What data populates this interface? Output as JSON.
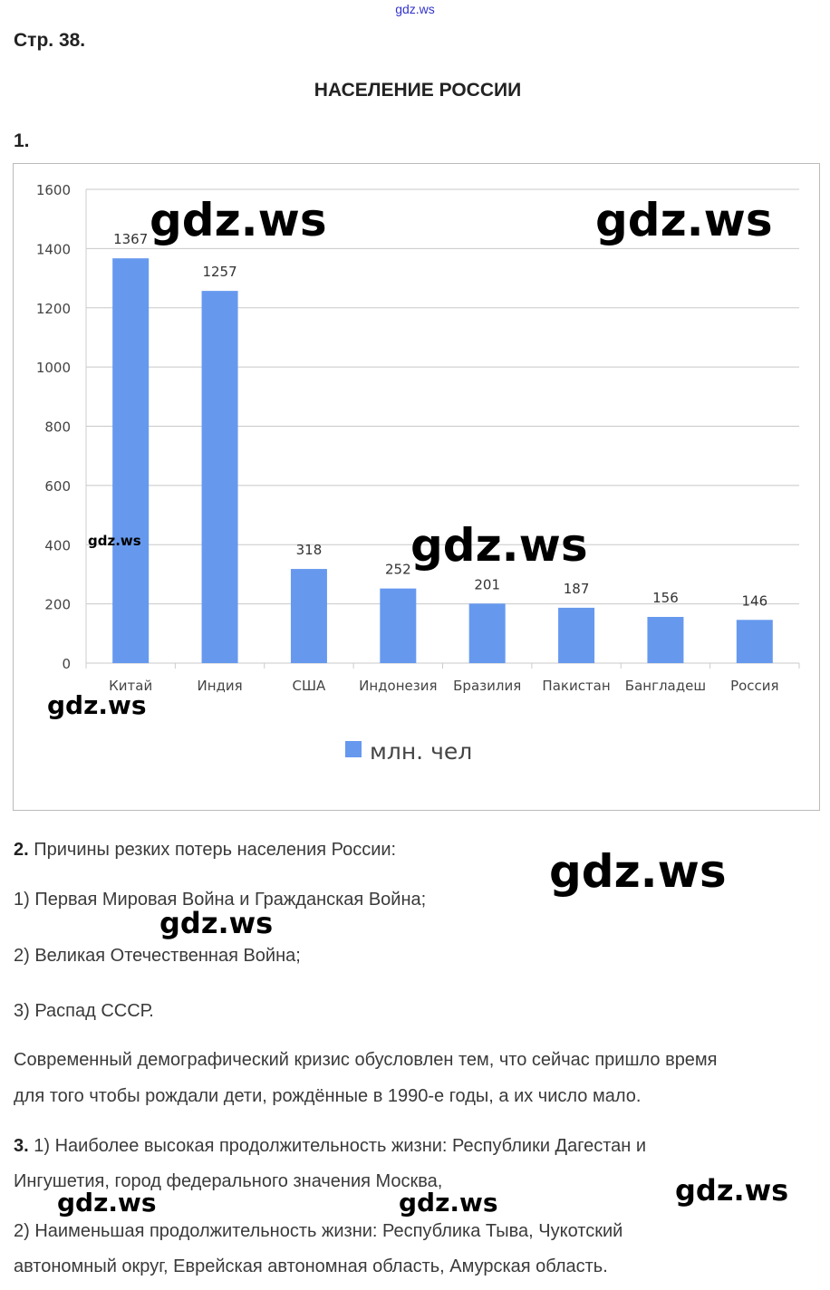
{
  "watermark": "gdz.ws",
  "header": {
    "page": "Стр. 38.",
    "title": "НАСЕЛЕНИЕ РОССИИ",
    "task1": "1."
  },
  "chart_data": {
    "type": "bar",
    "categories": [
      "Китай",
      "Индия",
      "США",
      "Индонезия",
      "Бразилия",
      "Пакистан",
      "Бангладеш",
      "Россия"
    ],
    "values": [
      1367,
      1257,
      318,
      252,
      201,
      187,
      156,
      146
    ],
    "series_name": "млн. чел",
    "title": "",
    "xlabel": "",
    "ylabel": "",
    "ylim": [
      0,
      1600
    ],
    "yticks": [
      "0",
      "200",
      "400",
      "600",
      "800",
      "1000",
      "1200",
      "1400",
      "1600"
    ],
    "grid": true,
    "legend": "bottom",
    "color": "#6699ee"
  },
  "task2": {
    "num": "2.",
    "heading": " Причины резких потерь населения России:",
    "items": [
      "1) Первая Мировая Война и Гражданская Война;",
      "2) Великая Отечественная Война;",
      "3) Распад СССР."
    ],
    "para_lines": [
      "Современный демографический кризис обусловлен тем, что сейчас пришло время",
      "для того чтобы рождали дети, рождённые в 1990-е годы, а их число мало."
    ]
  },
  "task3": {
    "num": "3.",
    "lines": [
      " 1) Наиболее высокая продолжительность жизни: Республики Дагестан и",
      "Ингушетия, город федерального значения Москва,",
      "2) Наименьшая продолжительность жизни: Республика Тыва, Чукотский",
      "автономный округ, Еврейская автономная область, Амурская область."
    ]
  }
}
